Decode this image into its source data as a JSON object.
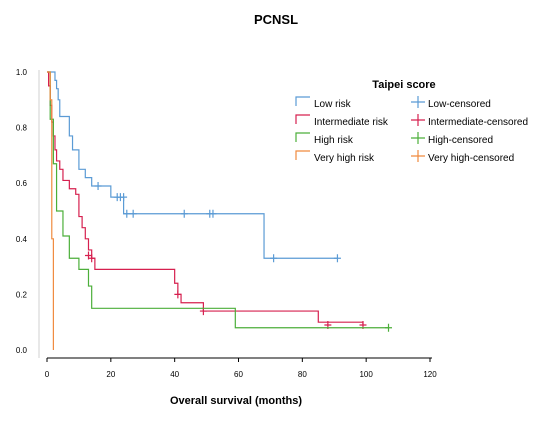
{
  "chart_data": {
    "type": "line",
    "title": "PCNSL",
    "xlabel": "Overall survival (months)",
    "ylabel": "",
    "xlim": [
      0,
      120
    ],
    "ylim": [
      0,
      1
    ],
    "xticks": [
      0,
      20,
      40,
      60,
      80,
      100,
      120
    ],
    "yticks": [
      0.0,
      0.2,
      0.4,
      0.6,
      0.8,
      1.0
    ],
    "xtick_labels": [
      "0",
      "20",
      "40",
      "60",
      "80",
      "100",
      "120"
    ],
    "ytick_labels": [
      "0.0",
      "0.2",
      "0.4",
      "0.6",
      "0.8",
      "1.0"
    ],
    "grid": false,
    "legend": {
      "title": "Taipei score",
      "placement": "top-right",
      "entries": [
        {
          "label": "Low risk",
          "kind": "line",
          "series": 0
        },
        {
          "label": "Low-censored",
          "kind": "censor",
          "series": 0
        },
        {
          "label": "Intermediate risk",
          "kind": "line",
          "series": 1
        },
        {
          "label": "Intermediate-censored",
          "kind": "censor",
          "series": 1
        },
        {
          "label": "High risk",
          "kind": "line",
          "series": 2
        },
        {
          "label": "High-censored",
          "kind": "censor",
          "series": 2
        },
        {
          "label": "Very high risk",
          "kind": "line",
          "series": 3
        },
        {
          "label": "Very high-censored",
          "kind": "censor",
          "series": 3
        }
      ]
    },
    "series": [
      {
        "name": "Low risk",
        "color": "#5b9bd5",
        "steps": [
          [
            0,
            1.0
          ],
          [
            2.5,
            0.97
          ],
          [
            3,
            0.94
          ],
          [
            3.5,
            0.9
          ],
          [
            4,
            0.84
          ],
          [
            7,
            0.77
          ],
          [
            8,
            0.72
          ],
          [
            10,
            0.65
          ],
          [
            12,
            0.62
          ],
          [
            14,
            0.59
          ],
          [
            20,
            0.55
          ],
          [
            24,
            0.49
          ],
          [
            68,
            0.33
          ],
          [
            91,
            0.33
          ]
        ],
        "censored": [
          [
            16,
            0.59
          ],
          [
            22,
            0.55
          ],
          [
            23,
            0.55
          ],
          [
            24,
            0.55
          ],
          [
            25,
            0.49
          ],
          [
            27,
            0.49
          ],
          [
            43,
            0.49
          ],
          [
            51,
            0.49
          ],
          [
            52,
            0.49
          ],
          [
            71,
            0.33
          ],
          [
            91,
            0.33
          ]
        ]
      },
      {
        "name": "Intermediate risk",
        "color": "#d6204f",
        "steps": [
          [
            0,
            1.0
          ],
          [
            0.5,
            0.95
          ],
          [
            1,
            0.88
          ],
          [
            1.5,
            0.82
          ],
          [
            2,
            0.77
          ],
          [
            2.5,
            0.72
          ],
          [
            3,
            0.68
          ],
          [
            4,
            0.65
          ],
          [
            5,
            0.61
          ],
          [
            7,
            0.58
          ],
          [
            9,
            0.56
          ],
          [
            10,
            0.48
          ],
          [
            11,
            0.44
          ],
          [
            12,
            0.4
          ],
          [
            13,
            0.36
          ],
          [
            14,
            0.33
          ],
          [
            15,
            0.29
          ],
          [
            40,
            0.24
          ],
          [
            41,
            0.2
          ],
          [
            42,
            0.17
          ],
          [
            49,
            0.14
          ],
          [
            85,
            0.1
          ],
          [
            99,
            0.09
          ]
        ],
        "censored": [
          [
            13,
            0.34
          ],
          [
            14,
            0.33
          ],
          [
            41,
            0.2
          ],
          [
            49,
            0.14
          ],
          [
            88,
            0.09
          ],
          [
            99,
            0.09
          ]
        ]
      },
      {
        "name": "High risk",
        "color": "#4caf3a",
        "steps": [
          [
            0,
            1.0
          ],
          [
            1,
            0.83
          ],
          [
            2,
            0.67
          ],
          [
            3,
            0.5
          ],
          [
            5,
            0.41
          ],
          [
            7,
            0.33
          ],
          [
            10,
            0.29
          ],
          [
            13,
            0.23
          ],
          [
            14,
            0.15
          ],
          [
            59,
            0.08
          ],
          [
            107,
            0.08
          ]
        ],
        "censored": [
          [
            107,
            0.08
          ]
        ]
      },
      {
        "name": "Very high risk",
        "color": "#f08a3e",
        "steps": [
          [
            0,
            1.0
          ],
          [
            1,
            0.9
          ],
          [
            1.5,
            0.4
          ],
          [
            2,
            0.0
          ]
        ],
        "censored": []
      }
    ]
  }
}
